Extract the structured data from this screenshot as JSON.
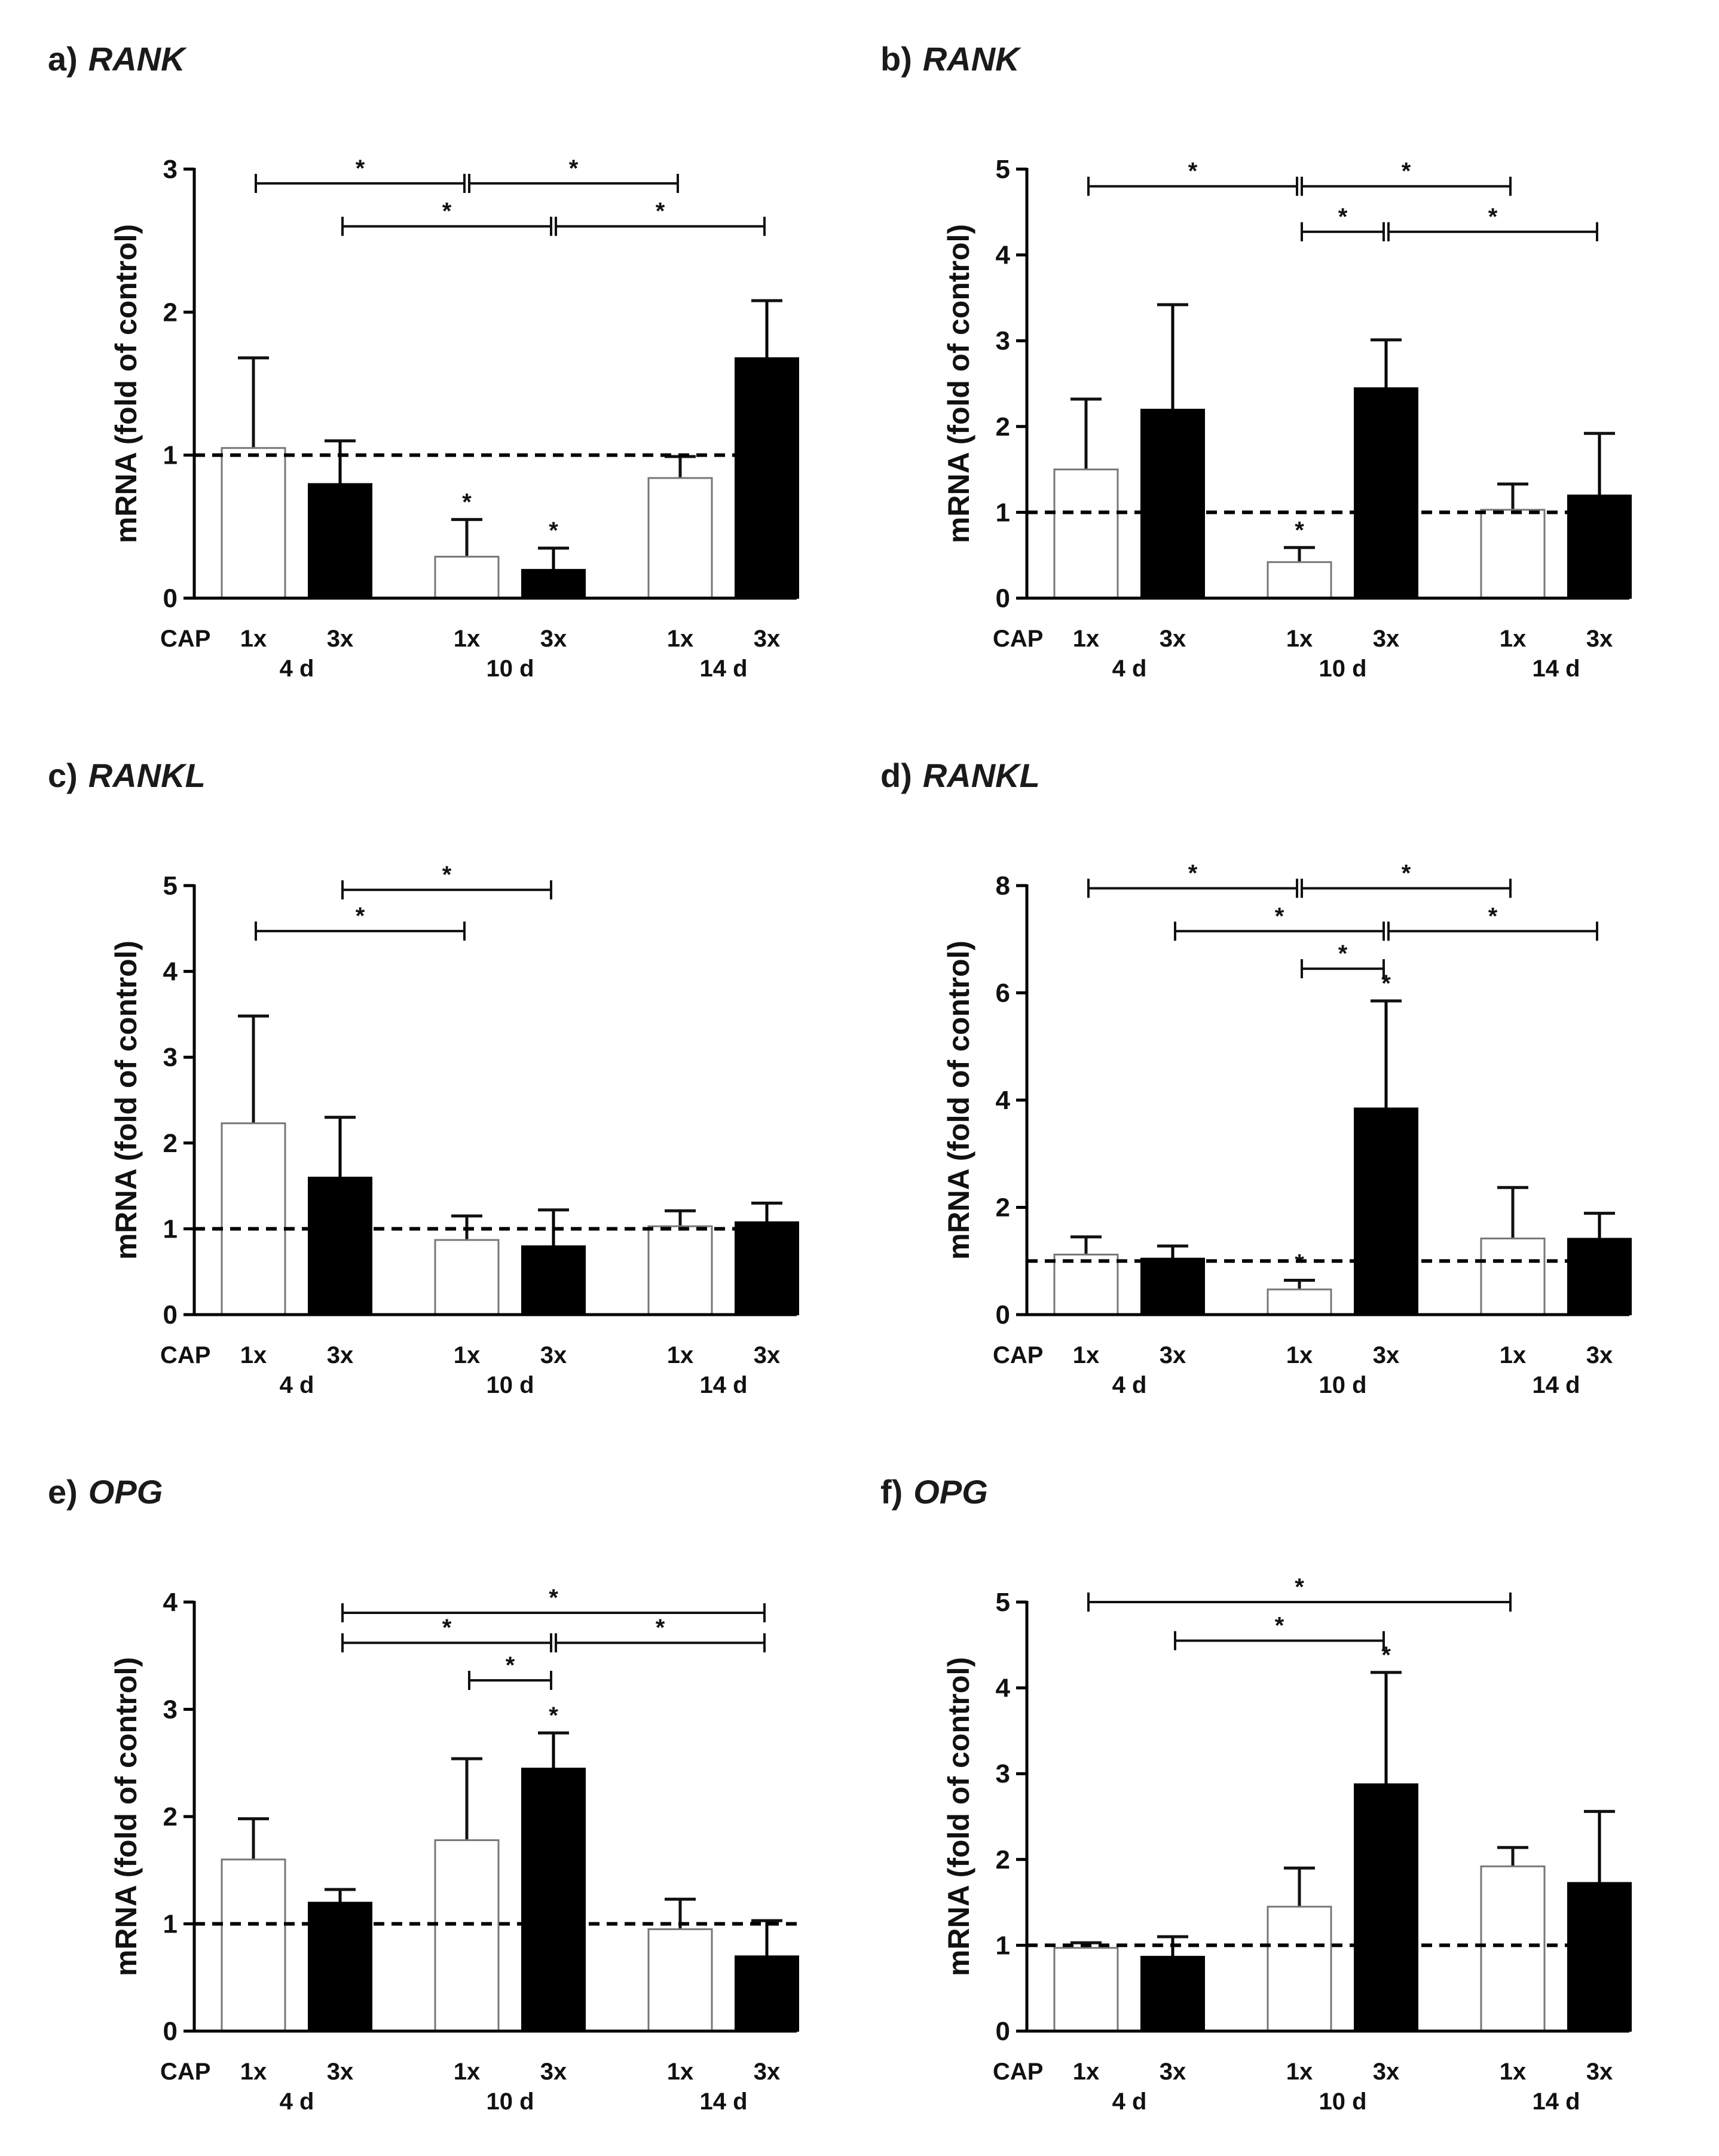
{
  "chart_data": [
    {
      "id": "a",
      "panel_label": "a)",
      "title": "RANK",
      "type": "bar",
      "ylabel": "mRNA (fold of control)",
      "ylim": [
        0,
        3
      ],
      "yticks": [
        0,
        1,
        2,
        3
      ],
      "control_label": "CAP",
      "reference_line": 1,
      "groups": [
        "4 d",
        "10 d",
        "14 d"
      ],
      "categories": [
        "1x",
        "3x"
      ],
      "bars": [
        {
          "group": "4 d",
          "label": "1x",
          "fill": "white",
          "value": 1.05,
          "error": 0.63,
          "star": false
        },
        {
          "group": "4 d",
          "label": "3x",
          "fill": "black",
          "value": 0.8,
          "error": 0.3,
          "star": false
        },
        {
          "group": "10 d",
          "label": "1x",
          "fill": "white",
          "value": 0.29,
          "error": 0.26,
          "star": true
        },
        {
          "group": "10 d",
          "label": "3x",
          "fill": "black",
          "value": 0.2,
          "error": 0.15,
          "star": true
        },
        {
          "group": "14 d",
          "label": "1x",
          "fill": "white",
          "value": 0.84,
          "error": 0.15,
          "star": false
        },
        {
          "group": "14 d",
          "label": "3x",
          "fill": "black",
          "value": 1.68,
          "error": 0.4,
          "star": false
        }
      ],
      "brackets": [
        {
          "from": 0,
          "to": 2,
          "level": 2.9,
          "label": "*"
        },
        {
          "from": 2,
          "to": 4,
          "level": 2.9,
          "label": "*"
        },
        {
          "from": 1,
          "to": 3,
          "level": 2.6,
          "label": "*"
        },
        {
          "from": 3,
          "to": 5,
          "level": 2.6,
          "label": "*"
        }
      ]
    },
    {
      "id": "b",
      "panel_label": "b)",
      "title": "RANK",
      "type": "bar",
      "ylabel": "mRNA (fold of control)",
      "ylim": [
        0,
        5
      ],
      "yticks": [
        0,
        1,
        2,
        3,
        4,
        5
      ],
      "control_label": "CAP",
      "reference_line": 1,
      "groups": [
        "4 d",
        "10 d",
        "14 d"
      ],
      "categories": [
        "1x",
        "3x"
      ],
      "bars": [
        {
          "group": "4 d",
          "label": "1x",
          "fill": "white",
          "value": 1.5,
          "error": 0.82,
          "star": false
        },
        {
          "group": "4 d",
          "label": "3x",
          "fill": "black",
          "value": 2.2,
          "error": 1.22,
          "star": false
        },
        {
          "group": "10 d",
          "label": "1x",
          "fill": "white",
          "value": 0.42,
          "error": 0.17,
          "star": true
        },
        {
          "group": "10 d",
          "label": "3x",
          "fill": "black",
          "value": 2.45,
          "error": 0.56,
          "star": false
        },
        {
          "group": "14 d",
          "label": "1x",
          "fill": "white",
          "value": 1.03,
          "error": 0.3,
          "star": false
        },
        {
          "group": "14 d",
          "label": "3x",
          "fill": "black",
          "value": 1.2,
          "error": 0.72,
          "star": false
        }
      ],
      "brackets": [
        {
          "from": 0,
          "to": 2,
          "level": 4.8,
          "label": "*"
        },
        {
          "from": 2,
          "to": 4,
          "level": 4.8,
          "label": "*"
        },
        {
          "from": 2,
          "to": 3,
          "level": 4.27,
          "label": "*"
        },
        {
          "from": 3,
          "to": 5,
          "level": 4.27,
          "label": "*"
        }
      ]
    },
    {
      "id": "c",
      "panel_label": "c)",
      "title": "RANKL",
      "type": "bar",
      "ylabel": "mRNA (fold of control)",
      "ylim": [
        0,
        5
      ],
      "yticks": [
        0,
        1,
        2,
        3,
        4,
        5
      ],
      "control_label": "CAP",
      "reference_line": 1,
      "groups": [
        "4 d",
        "10 d",
        "14 d"
      ],
      "categories": [
        "1x",
        "3x"
      ],
      "bars": [
        {
          "group": "4 d",
          "label": "1x",
          "fill": "white",
          "value": 2.23,
          "error": 1.25,
          "star": false
        },
        {
          "group": "4 d",
          "label": "3x",
          "fill": "black",
          "value": 1.6,
          "error": 0.7,
          "star": false
        },
        {
          "group": "10 d",
          "label": "1x",
          "fill": "white",
          "value": 0.87,
          "error": 0.28,
          "star": false
        },
        {
          "group": "10 d",
          "label": "3x",
          "fill": "black",
          "value": 0.8,
          "error": 0.42,
          "star": false
        },
        {
          "group": "14 d",
          "label": "1x",
          "fill": "white",
          "value": 1.03,
          "error": 0.18,
          "star": false
        },
        {
          "group": "14 d",
          "label": "3x",
          "fill": "black",
          "value": 1.08,
          "error": 0.22,
          "star": false
        }
      ],
      "brackets": [
        {
          "from": 1,
          "to": 3,
          "level": 4.95,
          "label": "*"
        },
        {
          "from": 0,
          "to": 2,
          "level": 4.47,
          "label": "*"
        }
      ]
    },
    {
      "id": "d",
      "panel_label": "d)",
      "title": "RANKL",
      "type": "bar",
      "ylabel": "mRNA (fold of control)",
      "ylim": [
        0,
        8
      ],
      "yticks": [
        0,
        2,
        4,
        6,
        8
      ],
      "control_label": "CAP",
      "reference_line": 1,
      "groups": [
        "4 d",
        "10 d",
        "14 d"
      ],
      "categories": [
        "1x",
        "3x"
      ],
      "bars": [
        {
          "group": "4 d",
          "label": "1x",
          "fill": "white",
          "value": 1.12,
          "error": 0.33,
          "star": false
        },
        {
          "group": "4 d",
          "label": "3x",
          "fill": "black",
          "value": 1.05,
          "error": 0.23,
          "star": false
        },
        {
          "group": "10 d",
          "label": "1x",
          "fill": "white",
          "value": 0.47,
          "error": 0.17,
          "star": true
        },
        {
          "group": "10 d",
          "label": "3x",
          "fill": "black",
          "value": 3.85,
          "error": 2.0,
          "star": true
        },
        {
          "group": "14 d",
          "label": "1x",
          "fill": "white",
          "value": 1.42,
          "error": 0.95,
          "star": false
        },
        {
          "group": "14 d",
          "label": "3x",
          "fill": "black",
          "value": 1.42,
          "error": 0.47,
          "star": false
        }
      ],
      "brackets": [
        {
          "from": 0,
          "to": 2,
          "level": 7.95,
          "label": "*"
        },
        {
          "from": 2,
          "to": 4,
          "level": 7.95,
          "label": "*"
        },
        {
          "from": 1,
          "to": 3,
          "level": 7.15,
          "label": "*"
        },
        {
          "from": 3,
          "to": 5,
          "level": 7.15,
          "label": "*"
        },
        {
          "from": 2,
          "to": 3,
          "level": 6.45,
          "label": "*"
        }
      ]
    },
    {
      "id": "e",
      "panel_label": "e)",
      "title": "OPG",
      "type": "bar",
      "ylabel": "mRNA (fold of control)",
      "ylim": [
        0,
        4
      ],
      "yticks": [
        0,
        1,
        2,
        3,
        4
      ],
      "control_label": "CAP",
      "reference_line": 1,
      "groups": [
        "4 d",
        "10 d",
        "14 d"
      ],
      "categories": [
        "1x",
        "3x"
      ],
      "bars": [
        {
          "group": "4 d",
          "label": "1x",
          "fill": "white",
          "value": 1.6,
          "error": 0.38,
          "star": false
        },
        {
          "group": "4 d",
          "label": "3x",
          "fill": "black",
          "value": 1.2,
          "error": 0.12,
          "star": false
        },
        {
          "group": "10 d",
          "label": "1x",
          "fill": "white",
          "value": 1.78,
          "error": 0.76,
          "star": false
        },
        {
          "group": "10 d",
          "label": "3x",
          "fill": "black",
          "value": 2.45,
          "error": 0.33,
          "star": true
        },
        {
          "group": "14 d",
          "label": "1x",
          "fill": "white",
          "value": 0.95,
          "error": 0.28,
          "star": false
        },
        {
          "group": "14 d",
          "label": "3x",
          "fill": "black",
          "value": 0.7,
          "error": 0.33,
          "star": false
        }
      ],
      "brackets": [
        {
          "from": 1,
          "to": 5,
          "level": 3.9,
          "label": "*"
        },
        {
          "from": 1,
          "to": 3,
          "level": 3.62,
          "label": "*"
        },
        {
          "from": 3,
          "to": 5,
          "level": 3.62,
          "label": "*"
        },
        {
          "from": 2,
          "to": 3,
          "level": 3.27,
          "label": "*"
        }
      ]
    },
    {
      "id": "f",
      "panel_label": "f)",
      "title": "OPG",
      "type": "bar",
      "ylabel": "mRNA (fold of control)",
      "ylim": [
        0,
        5
      ],
      "yticks": [
        0,
        1,
        2,
        3,
        4,
        5
      ],
      "control_label": "CAP",
      "reference_line": 1,
      "groups": [
        "4 d",
        "10 d",
        "14 d"
      ],
      "categories": [
        "1x",
        "3x"
      ],
      "bars": [
        {
          "group": "4 d",
          "label": "1x",
          "fill": "white",
          "value": 0.97,
          "error": 0.06,
          "star": false
        },
        {
          "group": "4 d",
          "label": "3x",
          "fill": "black",
          "value": 0.87,
          "error": 0.23,
          "star": false
        },
        {
          "group": "10 d",
          "label": "1x",
          "fill": "white",
          "value": 1.45,
          "error": 0.45,
          "star": false
        },
        {
          "group": "10 d",
          "label": "3x",
          "fill": "black",
          "value": 2.88,
          "error": 1.3,
          "star": true
        },
        {
          "group": "14 d",
          "label": "1x",
          "fill": "white",
          "value": 1.92,
          "error": 0.22,
          "star": false
        },
        {
          "group": "14 d",
          "label": "3x",
          "fill": "black",
          "value": 1.73,
          "error": 0.83,
          "star": false
        }
      ],
      "brackets": [
        {
          "from": 0,
          "to": 4,
          "level": 5.0,
          "label": "*"
        },
        {
          "from": 1,
          "to": 3,
          "level": 4.55,
          "label": "*"
        }
      ]
    }
  ]
}
